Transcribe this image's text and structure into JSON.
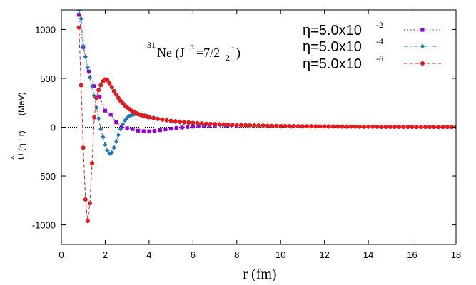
{
  "chart_data": {
    "type": "line",
    "xlabel": "r (fm)",
    "ylabel": {
      "hat": "^",
      "main": "U (η ; r)",
      "unit": "(MeV)"
    },
    "xlim": [
      0,
      18
    ],
    "ylim": [
      -1200,
      1200
    ],
    "xticks": [
      0,
      2,
      4,
      6,
      8,
      10,
      12,
      14,
      16,
      18
    ],
    "yticks": [
      -1000,
      -500,
      0,
      500,
      1000
    ],
    "zero_line": true,
    "annotation": {
      "mass": "31",
      "element": "Ne (J",
      "pi": "π",
      "spin": "=7/2",
      "sub": "2",
      "sup": "-",
      "close": ")"
    },
    "legend_placement": "top-right",
    "series": [
      {
        "name": "η=5.0x10",
        "exp": "-2",
        "color": "#9400d3",
        "marker": "square",
        "dash": "dot",
        "x": [
          0.8,
          1.0,
          1.25,
          1.5,
          1.75,
          2.0,
          2.25,
          2.5,
          2.75,
          3.0,
          3.25,
          3.5,
          3.75,
          4.0,
          4.25,
          4.5,
          4.75,
          5.0,
          5.25,
          5.5,
          5.75,
          6.0,
          6.25,
          6.5,
          6.75,
          7.0,
          7.5,
          8.0
        ],
        "y": [
          1150,
          820,
          570,
          420,
          310,
          170,
          130,
          50,
          5,
          -10,
          -20,
          -35,
          -40,
          -42,
          -38,
          -30,
          -22,
          -15,
          -8,
          -3,
          2,
          6,
          9,
          11,
          12,
          12,
          10,
          8
        ]
      },
      {
        "name": "η=5.0x10",
        "exp": "-4",
        "color": "#1f77b4",
        "marker": "diamond",
        "dash": "dashdot",
        "x": [
          0.8,
          0.9,
          1.0,
          1.1,
          1.2,
          1.3,
          1.4,
          1.5,
          1.6,
          1.7,
          1.8,
          1.9,
          2.0,
          2.1,
          2.2,
          2.3,
          2.4,
          2.5,
          2.6,
          2.7,
          2.8,
          2.9,
          3.0,
          3.1,
          3.2,
          3.3,
          3.4,
          3.5,
          3.6,
          3.7,
          3.8,
          3.9,
          4.0,
          4.2,
          4.4,
          4.6,
          4.8,
          5.0,
          5.2,
          5.4,
          5.6,
          5.8,
          6.0,
          6.25,
          6.5,
          6.75,
          7.0,
          7.25,
          7.5,
          7.75,
          8.0,
          8.5,
          9.0,
          9.5,
          10.0,
          10.5,
          11.0
        ],
        "y": [
          1200,
          1110,
          830,
          720,
          610,
          510,
          420,
          320,
          200,
          90,
          -20,
          -100,
          -180,
          -240,
          -270,
          -260,
          -210,
          -150,
          -80,
          -20,
          30,
          70,
          95,
          115,
          125,
          130,
          132,
          130,
          128,
          125,
          120,
          115,
          110,
          100,
          90,
          80,
          70,
          62,
          55,
          50,
          45,
          40,
          36,
          32,
          28,
          25,
          22,
          20,
          18,
          16,
          14,
          12,
          10,
          8,
          7,
          6,
          5
        ]
      },
      {
        "name": "η=5.0x10",
        "exp": "-6",
        "color": "#e41a1c",
        "marker": "circle",
        "dash": "dash",
        "x": [
          0.8,
          0.9,
          1.0,
          1.1,
          1.2,
          1.3,
          1.4,
          1.5,
          1.6,
          1.7,
          1.8,
          1.9,
          2.0,
          2.1,
          2.2,
          2.3,
          2.4,
          2.5,
          2.6,
          2.7,
          2.8,
          2.9,
          3.0,
          3.1,
          3.2,
          3.3,
          3.4,
          3.5,
          3.6,
          3.7,
          3.8,
          3.9,
          4.0,
          4.2,
          4.4,
          4.6,
          4.8,
          5.0,
          5.2,
          5.4,
          5.6,
          5.8,
          6.0,
          6.2,
          6.4,
          6.6,
          6.8,
          7.0,
          7.2,
          7.4,
          7.6,
          7.8,
          8.0,
          8.2,
          8.4,
          8.6,
          8.8,
          9.0,
          9.2,
          9.4,
          9.6,
          9.8,
          10.0,
          10.2,
          10.4,
          10.6,
          10.8,
          11.0,
          11.2,
          11.4,
          11.6,
          11.8,
          12.0,
          12.2,
          12.4,
          12.6,
          12.8,
          13.0,
          13.2,
          13.4,
          13.6,
          13.8,
          14.0,
          14.2,
          14.4,
          14.6,
          14.8,
          15.0,
          15.2,
          15.4,
          15.6,
          15.8,
          16.0,
          16.2,
          16.4,
          16.6,
          16.8,
          17.0,
          17.2,
          17.4,
          17.6,
          17.8,
          18.0
        ],
        "y": [
          1020,
          430,
          -210,
          -740,
          -960,
          -780,
          -370,
          100,
          300,
          380,
          430,
          470,
          490,
          480,
          450,
          410,
          370,
          335,
          300,
          270,
          245,
          222,
          202,
          185,
          170,
          157,
          146,
          136,
          127,
          120,
          113,
          107,
          102,
          93,
          85,
          78,
          72,
          66,
          61,
          57,
          53,
          49,
          45,
          42,
          39,
          36,
          34,
          32,
          30,
          28,
          26,
          24,
          22,
          21,
          20,
          19,
          18,
          17,
          16,
          15,
          14,
          13,
          12,
          12,
          11,
          11,
          10,
          10,
          9,
          9,
          8,
          8,
          8,
          7,
          7,
          7,
          6,
          6,
          6,
          6,
          5,
          5,
          5,
          5,
          5,
          4,
          4,
          4,
          4,
          4,
          4,
          3,
          3,
          3,
          3,
          3,
          3,
          3,
          3,
          2,
          2,
          2,
          2
        ]
      }
    ]
  }
}
